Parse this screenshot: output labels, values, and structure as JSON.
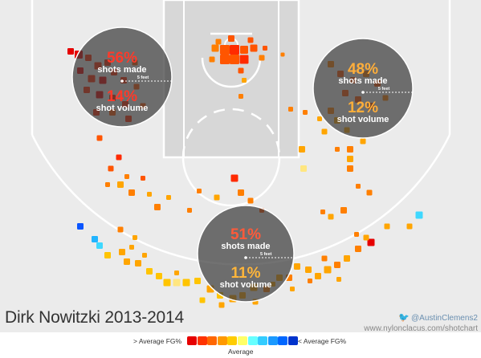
{
  "title": "Dirk Nowitzki 2013-2014",
  "credit": {
    "handle": "@AustinClemens2",
    "url": "www.nylonclacus.com/shotchart",
    "icon": "twitter-icon"
  },
  "legend": {
    "above_label": "> Average FG%",
    "below_label": "< Average FG%",
    "average_label": "Average",
    "colors": [
      "#e60000",
      "#ff3300",
      "#ff6600",
      "#ff9900",
      "#ffcc00",
      "#ffff66",
      "#66ffff",
      "#33ccff",
      "#1a99ff",
      "#0066ff",
      "#0033cc"
    ]
  },
  "chart_data": {
    "type": "shot_chart",
    "zones": [
      {
        "name": "left wing",
        "fg_pct": "56%",
        "fg_label": "shots made",
        "volume_pct": "14%",
        "volume_label": "shot volume",
        "radius_label": "5 feet"
      },
      {
        "name": "right wing",
        "fg_pct": "48%",
        "fg_label": "shots made",
        "volume_pct": "12%",
        "volume_label": "shot volume",
        "radius_label": "5 feet"
      },
      {
        "name": "top of key",
        "fg_pct": "51%",
        "fg_label": "shots made",
        "volume_pct": "11%",
        "volume_label": "shot volume",
        "radius_label": "5 feet"
      }
    ]
  }
}
